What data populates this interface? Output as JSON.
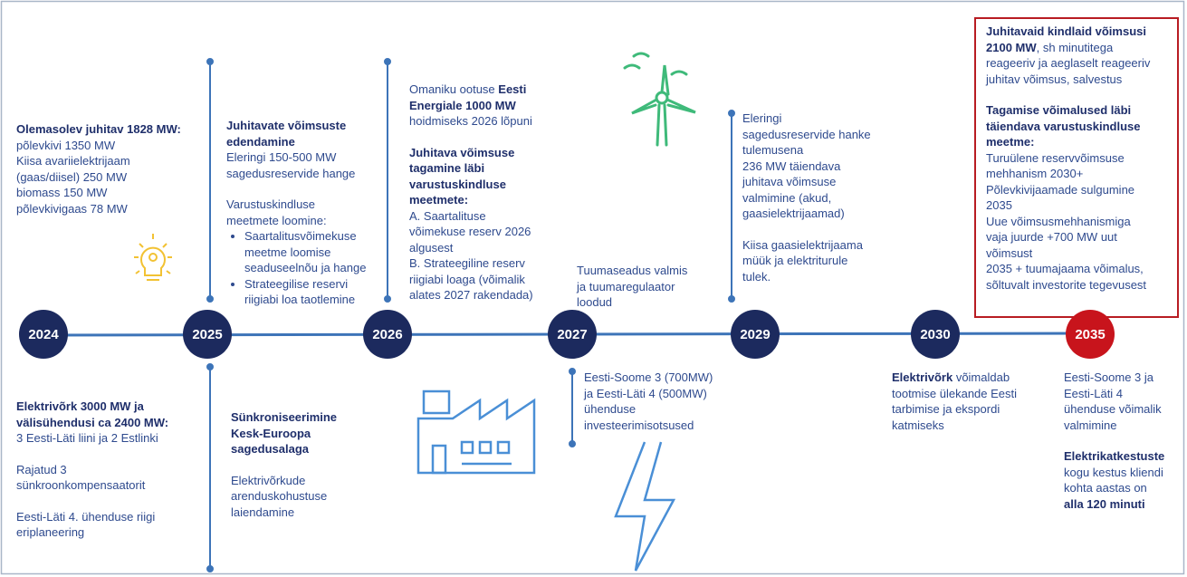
{
  "years": [
    {
      "label": "2024"
    },
    {
      "label": "2025"
    },
    {
      "label": "2026"
    },
    {
      "label": "2027"
    },
    {
      "label": "2029"
    },
    {
      "label": "2030"
    },
    {
      "label": "2035",
      "highlight": true
    }
  ],
  "blocks": [
    {
      "paragraphs": [
        {
          "lines": [
            [
              {
                "text": "Olemasolev juhitav 1828 MW:",
                "bold": true
              }
            ],
            [
              {
                "text": "põlevkivi 1350 MW"
              }
            ],
            [
              {
                "text": "Kiisa avariielektrijaam"
              }
            ],
            [
              {
                "text": "(gaas/diisel) 250 MW"
              }
            ],
            [
              {
                "text": "biomass 150 MW"
              }
            ],
            [
              {
                "text": "põlevkivigaas 78 MW"
              }
            ]
          ]
        }
      ]
    },
    {
      "paragraphs": [
        {
          "lines": [
            [
              {
                "text": "Juhitavate võimsuste",
                "bold": true
              }
            ],
            [
              {
                "text": "edendamine",
                "bold": true
              }
            ],
            [
              {
                "text": "Eleringi 150-500 MW"
              }
            ],
            [
              {
                "text": "sagedusreservide hange"
              }
            ]
          ]
        },
        {
          "lines": [
            [
              {
                "text": "Varustuskindluse"
              }
            ],
            [
              {
                "text": "meetmete loomine:"
              }
            ]
          ],
          "items": [
            [
              [
                {
                  "text": "Saartalitusvõimekuse"
                }
              ],
              [
                {
                  "text": "meetme loomise"
                }
              ],
              [
                {
                  "text": "seaduseelnõu ja hange"
                }
              ]
            ],
            [
              [
                {
                  "text": "Strateegilise reservi"
                }
              ],
              [
                {
                  "text": "riigiabi loa taotlemine"
                }
              ]
            ]
          ]
        }
      ]
    },
    {
      "paragraphs": [
        {
          "lines": [
            [
              {
                "text": "Omaniku ootuse "
              },
              {
                "text": "Eesti",
                "bold": true
              }
            ],
            [
              {
                "text": "Energiale 1000 MW",
                "bold": true
              }
            ],
            [
              {
                "text": "hoidmiseks 2026 lõpuni"
              }
            ]
          ]
        },
        {
          "lines": [
            [
              {
                "text": "Juhitava võimsuse",
                "bold": true
              }
            ],
            [
              {
                "text": "tagamine läbi",
                "bold": true
              }
            ],
            [
              {
                "text": "varustuskindluse",
                "bold": true
              }
            ],
            [
              {
                "text": "meetmete:",
                "bold": true
              }
            ],
            [
              {
                "text": "A. Saartalituse"
              }
            ],
            [
              {
                "text": "võimekuse reserv 2026"
              }
            ],
            [
              {
                "text": "algusest"
              }
            ],
            [
              {
                "text": "B. Strateegiline reserv"
              }
            ],
            [
              {
                "text": "riigiabi loaga (võimalik"
              }
            ],
            [
              {
                "text": "alates 2027 rakendada)"
              }
            ]
          ]
        }
      ]
    },
    {
      "paragraphs": [
        {
          "lines": [
            [
              {
                "text": "Tuumaseadus valmis"
              }
            ],
            [
              {
                "text": "ja tuumaregulaator"
              }
            ],
            [
              {
                "text": "loodud"
              }
            ]
          ]
        }
      ]
    },
    {
      "paragraphs": [
        {
          "lines": [
            [
              {
                "text": "Eleringi"
              }
            ],
            [
              {
                "text": "sagedusreservide hanke"
              }
            ],
            [
              {
                "text": "tulemusena"
              }
            ],
            [
              {
                "text": "236 MW täiendava"
              }
            ],
            [
              {
                "text": "juhitava võimsuse"
              }
            ],
            [
              {
                "text": "valmimine (akud,"
              }
            ],
            [
              {
                "text": "gaasielektrijaamad)"
              }
            ]
          ]
        },
        {
          "lines": [
            [
              {
                "text": "Kiisa gaasielektrijaama"
              }
            ],
            [
              {
                "text": "müük ja elektriturule"
              }
            ],
            [
              {
                "text": "tulek."
              }
            ]
          ]
        }
      ]
    },
    {
      "paragraphs": [
        {
          "lines": [
            [
              {
                "text": "Juhitavaid kindlaid võimsusi",
                "bold": true
              }
            ],
            [
              {
                "text": "2100 MW",
                "bold": true
              },
              {
                "text": ", sh minutitega"
              }
            ],
            [
              {
                "text": "reageeriv ja aeglaselt reageeriv"
              }
            ],
            [
              {
                "text": "juhitav võimsus, salvestus"
              }
            ]
          ]
        },
        {
          "lines": [
            [
              {
                "text": "Tagamise võimalused läbi",
                "bold": true
              }
            ],
            [
              {
                "text": "täiendava varustuskindluse",
                "bold": true
              }
            ],
            [
              {
                "text": "meetme:",
                "bold": true
              }
            ],
            [
              {
                "text": "Turuülene reservvõimsuse"
              }
            ],
            [
              {
                "text": "mehhanism 2030+"
              }
            ],
            [
              {
                "text": "Põlevkivijaamade sulgumine"
              }
            ],
            [
              {
                "text": "2035"
              }
            ],
            [
              {
                "text": "Uue võimsusmehhanismiga"
              }
            ],
            [
              {
                "text": "vaja juurde +700 MW uut"
              }
            ],
            [
              {
                "text": "võimsust"
              }
            ],
            [
              {
                "text": "2035 + tuumajaama võimalus,"
              }
            ],
            [
              {
                "text": "sõltuvalt investorite tegevusest"
              }
            ]
          ]
        }
      ]
    },
    {
      "paragraphs": [
        {
          "lines": [
            [
              {
                "text": "Elektrivõrk 3000 MW ja",
                "bold": true
              }
            ],
            [
              {
                "text": "välisühendusi ca 2400 MW:",
                "bold": true
              }
            ],
            [
              {
                "text": "3 Eesti-Läti liini ja 2 Estlinki"
              }
            ]
          ]
        },
        {
          "lines": [
            [
              {
                "text": "Rajatud 3"
              }
            ],
            [
              {
                "text": "sünkroonkompensaatorit"
              }
            ]
          ]
        },
        {
          "lines": [
            [
              {
                "text": "Eesti-Läti 4. ühenduse riigi"
              }
            ],
            [
              {
                "text": "eriplaneering"
              }
            ]
          ]
        }
      ]
    },
    {
      "paragraphs": [
        {
          "lines": [
            [
              {
                "text": "Sünkroniseerimine",
                "bold": true
              }
            ],
            [
              {
                "text": "Kesk-Euroopa",
                "bold": true
              }
            ],
            [
              {
                "text": "sagedusalaga",
                "bold": true
              }
            ]
          ]
        },
        {
          "lines": [
            [
              {
                "text": "Elektrivõrkude"
              }
            ],
            [
              {
                "text": "arenduskohustuse"
              }
            ],
            [
              {
                "text": "laiendamine"
              }
            ]
          ]
        }
      ]
    },
    {
      "paragraphs": [
        {
          "lines": [
            [
              {
                "text": "Eesti-Soome 3 (700MW)"
              }
            ],
            [
              {
                "text": "ja Eesti-Läti 4 (500MW)"
              }
            ],
            [
              {
                "text": "ühenduse"
              }
            ],
            [
              {
                "text": "investeerimisotsused"
              }
            ]
          ]
        }
      ]
    },
    {
      "paragraphs": [
        {
          "lines": [
            [
              {
                "text": "Elektrivõrk",
                "bold": true
              },
              {
                "text": " võimaldab"
              }
            ],
            [
              {
                "text": "tootmise ülekande Eesti"
              }
            ],
            [
              {
                "text": "tarbimise ja ekspordi"
              }
            ],
            [
              {
                "text": "katmiseks"
              }
            ]
          ]
        }
      ]
    },
    {
      "paragraphs": [
        {
          "lines": [
            [
              {
                "text": "Eesti-Soome 3 ja"
              }
            ],
            [
              {
                "text": "Eesti-Läti 4"
              }
            ],
            [
              {
                "text": "ühenduse võimalik"
              }
            ],
            [
              {
                "text": "valmimine"
              }
            ]
          ]
        },
        {
          "lines": [
            [
              {
                "text": "Elektrikatkestuste",
                "bold": true
              }
            ],
            [
              {
                "text": "kogu kestus kliendi"
              }
            ],
            [
              {
                "text": "kohta aastas on"
              }
            ],
            [
              {
                "text": "alla 120 minuti",
                "bold": true
              }
            ]
          ]
        }
      ]
    }
  ]
}
